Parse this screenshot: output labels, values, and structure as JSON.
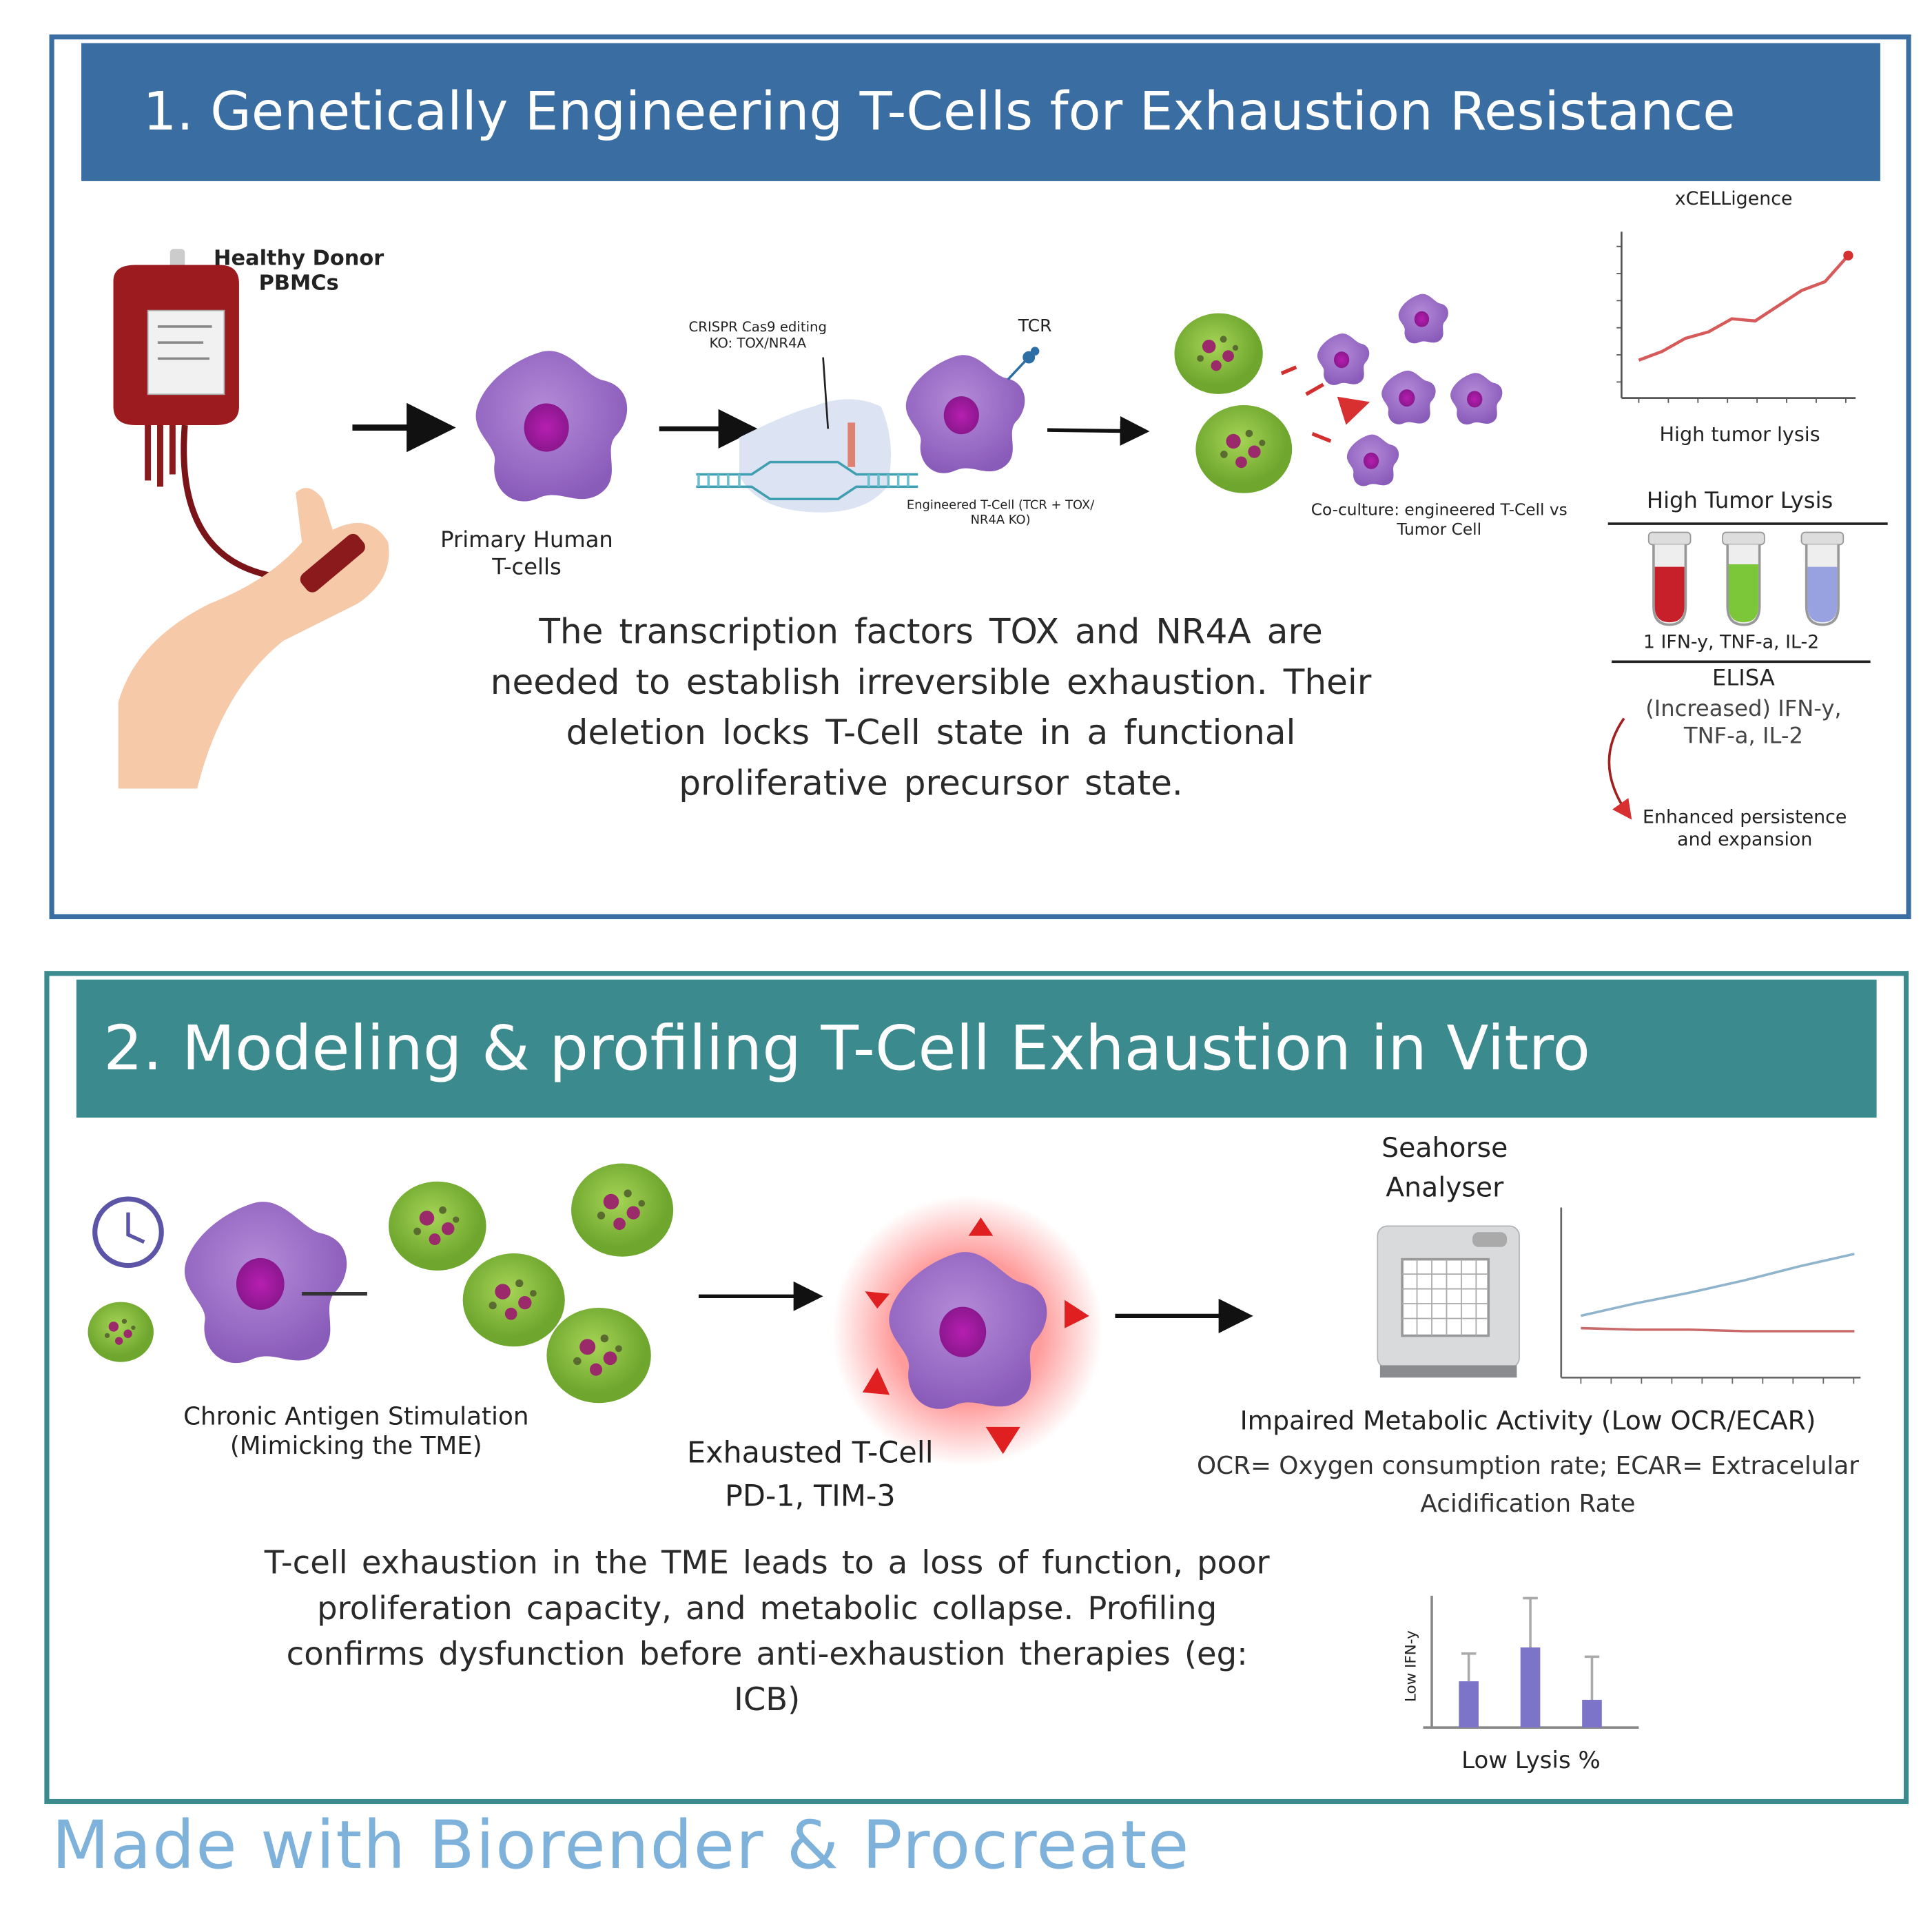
{
  "colors": {
    "panel1": "#3a6ea3",
    "panel2": "#3b8a8e",
    "footer": "#7fb2da",
    "tcell": "#9b6fc4",
    "nucleus": "#a21aa6",
    "tumor": "#8cc63f"
  },
  "section1": {
    "title": "1. Genetically Engineering T-Cells for Exhaustion Resistance",
    "donor_label": [
      "Healthy Donor",
      "PBMCs"
    ],
    "primary_label": [
      "Primary Human",
      "T-cells"
    ],
    "crispr_label": [
      "CRISPR Cas9 editing",
      "KO: TOX/NR4A"
    ],
    "tcr_label": "TCR",
    "engineered_label": [
      "Engineered T-Cell (TCR + TOX/",
      "NR4A KO)"
    ],
    "coculture_label": [
      "Co-culture: engineered T-Cell vs",
      "Tumor Cell"
    ],
    "xcelligence_title": "xCELLigence",
    "xcelligence_caption": "High tumor lysis",
    "lysis_heading": "High Tumor Lysis",
    "tubes_caption": "1 IFN-y, TNF-a, IL-2",
    "elisa": "ELISA",
    "elisa_result": [
      "(Increased) IFN-y,",
      "TNF-a, IL-2"
    ],
    "outcome": [
      "Enhanced persistence",
      "and expansion"
    ],
    "paragraph": "The transcription factors TOX and NR4A are needed to establish irreversible exhaustion. Their deletion locks T-Cell state in a functional proliferative precursor state."
  },
  "section2": {
    "title": "2. Modeling & profiling T-Cell Exhaustion in Vitro",
    "chronic_label": [
      "Chronic Antigen Stimulation",
      "(Mimicking the TME)"
    ],
    "exhausted_label": [
      "Exhausted T-Cell",
      "PD-1, TIM-3"
    ],
    "seahorse_label": [
      "Seahorse",
      "Analyser"
    ],
    "metabolic_title": "Impaired Metabolic Activity (Low OCR/ECAR)",
    "metabolic_desc": [
      "OCR= Oxygen consumption rate; ECAR= Extracelular",
      "Acidification Rate"
    ],
    "paragraph": "T-cell exhaustion in the TME leads to a loss of function, poor proliferation capacity, and metabolic collapse. Profiling confirms dysfunction before anti-exhaustion therapies (eg: ICB)",
    "bar_ylabel": "Low IFN-y",
    "bar_xlabel": "Low Lysis %"
  },
  "chart_data": [
    {
      "type": "line",
      "title": "xCELLigence",
      "xlabel": "High tumor lysis",
      "trend": "increasing",
      "series": [
        {
          "values": [
            1,
            1.4,
            2,
            2.3,
            2.9,
            2.8,
            3.5,
            4.2,
            4.6,
            5.8
          ]
        }
      ]
    },
    {
      "type": "line",
      "series": [
        {
          "color": "#8fb4cc",
          "values": [
            4,
            4.8,
            5.5,
            6.3,
            7.2,
            8
          ]
        },
        {
          "color": "#c96a6a",
          "values": [
            3.2,
            3.1,
            3.1,
            3.0,
            3.0,
            3.0
          ]
        }
      ]
    },
    {
      "type": "bar",
      "xlabel": "Low Lysis %",
      "ylabel": "Low IFN-y",
      "values": [
        1.5,
        2.6,
        0.9
      ],
      "errors": [
        0.9,
        1.6,
        1.4
      ],
      "color": "#7b74c9"
    }
  ],
  "footer": "Made with Biorender & Procreate"
}
